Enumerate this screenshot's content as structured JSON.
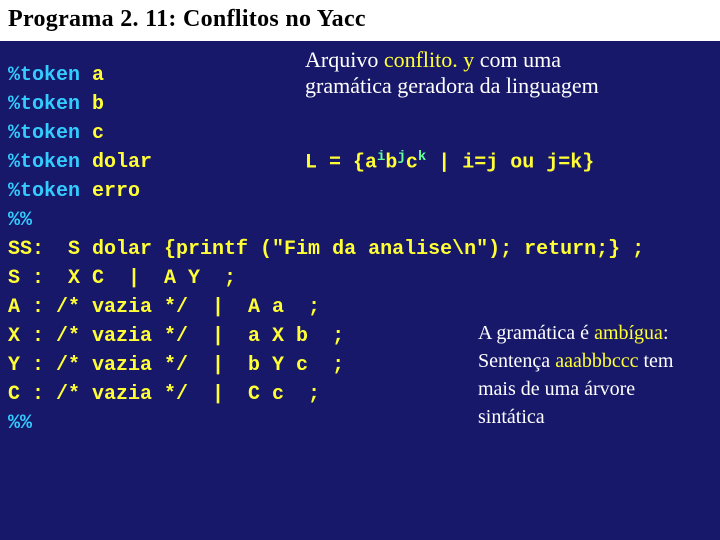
{
  "title": "Programa 2. 11:  Conflitos no Yacc",
  "code": {
    "tokens": [
      "a",
      "b",
      "c",
      "dolar",
      "erro"
    ],
    "token_kw": "%token",
    "sep": "%%",
    "rules": [
      {
        "lhs": "SS:",
        "rhs": "  S dolar {printf (\"Fim da analise\\n\"); return;} ;"
      },
      {
        "lhs": "S :",
        "rhs": "  X C  |  A Y  ;"
      },
      {
        "lhs": "A :",
        "rhs": " /* vazia */  |  A a  ;"
      },
      {
        "lhs": "X :",
        "rhs": " /* vazia */  |  a X b  ;"
      },
      {
        "lhs": "Y :",
        "rhs": " /* vazia */  |  b Y c  ;"
      },
      {
        "lhs": "C :",
        "rhs": " /* vazia */  |  C c  ;"
      }
    ]
  },
  "annot1": {
    "prefix": "Arquivo ",
    "file": "conflito. y",
    "line1_rest": " com uma",
    "line2": "gramática geradora da linguagem"
  },
  "formula": {
    "L": "L = {a",
    "i": "i",
    "b": "b",
    "j": "j",
    "c": "c",
    "k": "k",
    "rest": " | i=j ou j=k}"
  },
  "annot2": {
    "l1a": "A gramática é ",
    "l1b": "ambígua",
    "l1c": ":",
    "l2a": "Sentença ",
    "l2b": "aaabbbccc",
    "l2c": " tem",
    "l3": "mais de uma árvore",
    "l4": "sintática"
  },
  "colors": {
    "background": "#17186a",
    "keyword": "#33ccff",
    "token_text": "#ffff33",
    "highlight": "#ffff33",
    "white_text": "#ffffff",
    "superscript": "#66ff99"
  },
  "fonts": {
    "title_size_pt": 24,
    "body_size_pt": 20,
    "code_family": "Courier New",
    "serif_family": "Times New Roman"
  }
}
